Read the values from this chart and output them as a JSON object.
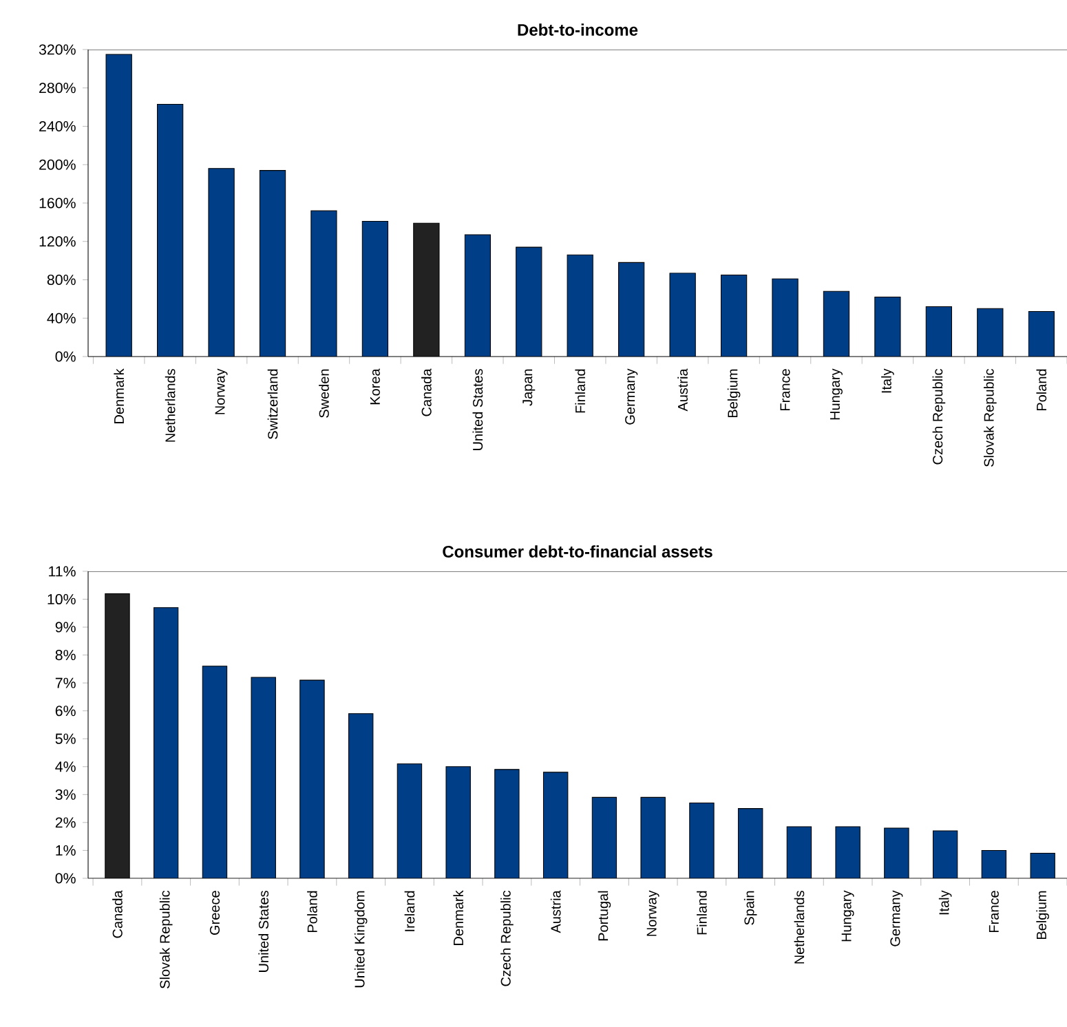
{
  "chart_data": [
    {
      "type": "bar",
      "title": "Debt-to-income",
      "categories": [
        "Denmark",
        "Netherlands",
        "Norway",
        "Switzerland",
        "Sweden",
        "Korea",
        "Canada",
        "United States",
        "Japan",
        "Finland",
        "Germany",
        "Austria",
        "Belgium",
        "France",
        "Hungary",
        "Italy",
        "Czech Republic",
        "Slovak Republic",
        "Poland"
      ],
      "values": [
        315,
        263,
        196,
        194,
        152,
        141,
        139,
        127,
        114,
        106,
        98,
        87,
        85,
        81,
        68,
        62,
        52,
        50,
        47
      ],
      "colors": [
        "#003f87",
        "#003f87",
        "#003f87",
        "#003f87",
        "#003f87",
        "#003f87",
        "#222222",
        "#003f87",
        "#003f87",
        "#003f87",
        "#003f87",
        "#003f87",
        "#003f87",
        "#003f87",
        "#003f87",
        "#003f87",
        "#003f87",
        "#003f87",
        "#003f87"
      ],
      "ylim": [
        0,
        320
      ],
      "yticks": [
        {
          "value": 0,
          "label": "0%"
        },
        {
          "value": 40,
          "label": "40%"
        },
        {
          "value": 80,
          "label": "80%"
        },
        {
          "value": 120,
          "label": "120%"
        },
        {
          "value": 160,
          "label": "160%"
        },
        {
          "value": 200,
          "label": "200%"
        },
        {
          "value": 240,
          "label": "240%"
        },
        {
          "value": 280,
          "label": "280%"
        },
        {
          "value": 320,
          "label": "320%"
        }
      ]
    },
    {
      "type": "bar",
      "title": "Consumer debt-to-financial assets",
      "categories": [
        "Canada",
        "Slovak Republic",
        "Greece",
        "United States",
        "Poland",
        "United Kingdom",
        "Ireland",
        "Denmark",
        "Czech Republic",
        "Austria",
        "Portugal",
        "Norway",
        "Finland",
        "Spain",
        "Netherlands",
        "Hungary",
        "Germany",
        "Italy",
        "France",
        "Belgium"
      ],
      "values": [
        10.2,
        9.7,
        7.6,
        7.2,
        7.1,
        5.9,
        4.1,
        4.0,
        3.9,
        3.8,
        2.9,
        2.9,
        2.7,
        2.5,
        1.85,
        1.85,
        1.8,
        1.7,
        1.0,
        0.9
      ],
      "colors": [
        "#222222",
        "#003f87",
        "#003f87",
        "#003f87",
        "#003f87",
        "#003f87",
        "#003f87",
        "#003f87",
        "#003f87",
        "#003f87",
        "#003f87",
        "#003f87",
        "#003f87",
        "#003f87",
        "#003f87",
        "#003f87",
        "#003f87",
        "#003f87",
        "#003f87",
        "#003f87"
      ],
      "ylim": [
        0,
        11
      ],
      "yticks": [
        {
          "value": 0,
          "label": "0%"
        },
        {
          "value": 1,
          "label": "1%"
        },
        {
          "value": 2,
          "label": "2%"
        },
        {
          "value": 3,
          "label": "3%"
        },
        {
          "value": 4,
          "label": "4%"
        },
        {
          "value": 5,
          "label": "5%"
        },
        {
          "value": 6,
          "label": "6%"
        },
        {
          "value": 7,
          "label": "7%"
        },
        {
          "value": 8,
          "label": "8%"
        },
        {
          "value": 9,
          "label": "9%"
        },
        {
          "value": 10,
          "label": "10%"
        },
        {
          "value": 11,
          "label": "11%"
        }
      ]
    }
  ]
}
